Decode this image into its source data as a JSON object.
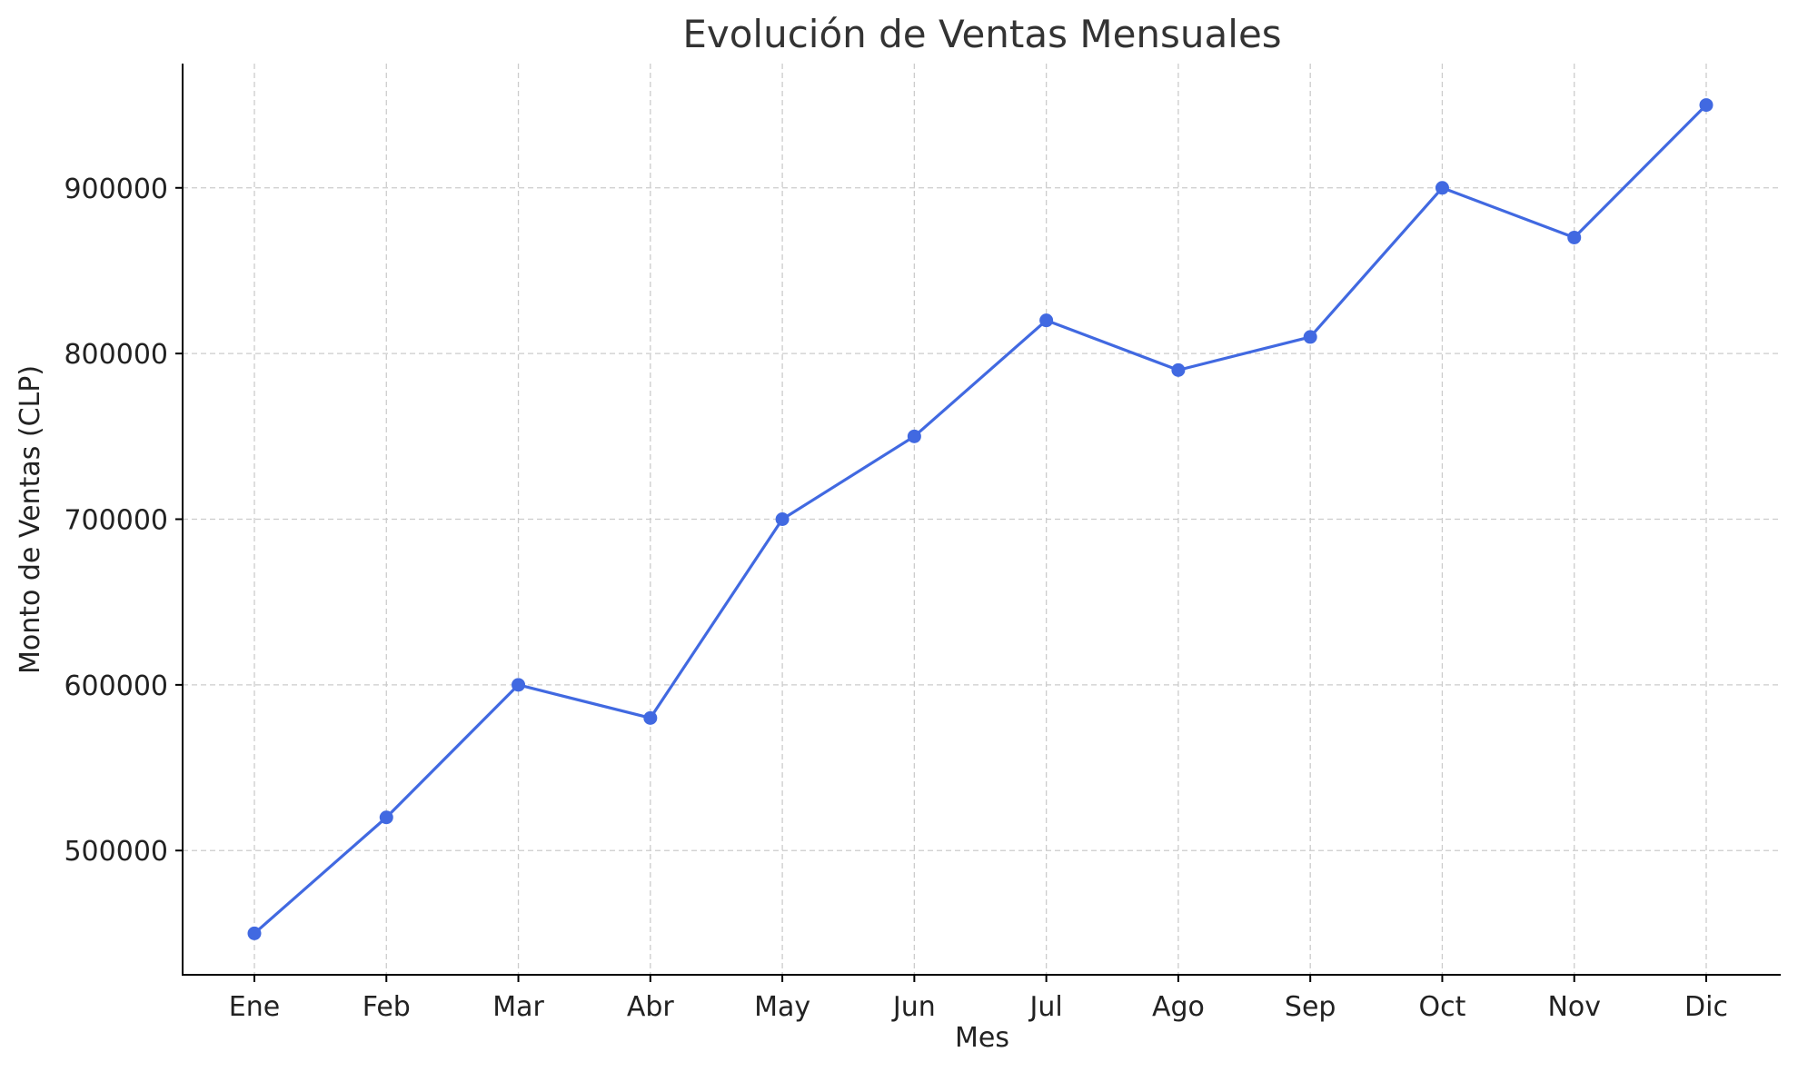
{
  "chart_data": {
    "type": "line",
    "title": "Evolución de Ventas Mensuales",
    "xlabel": "Mes",
    "ylabel": "Monto de Ventas (CLP)",
    "categories": [
      "Ene",
      "Feb",
      "Mar",
      "Abr",
      "May",
      "Jun",
      "Jul",
      "Ago",
      "Sep",
      "Oct",
      "Nov",
      "Dic"
    ],
    "series": [
      {
        "values": [
          450000,
          520000,
          600000,
          580000,
          700000,
          750000,
          820000,
          790000,
          810000,
          900000,
          870000,
          950000
        ],
        "color": "#4169e1",
        "marker": "circle"
      }
    ],
    "yticks": [
      500000,
      600000,
      700000,
      800000,
      900000
    ],
    "ytick_labels": [
      "500000",
      "600000",
      "700000",
      "800000",
      "900000"
    ],
    "ylim": [
      425000,
      975000
    ],
    "grid": true,
    "legend": "none"
  }
}
